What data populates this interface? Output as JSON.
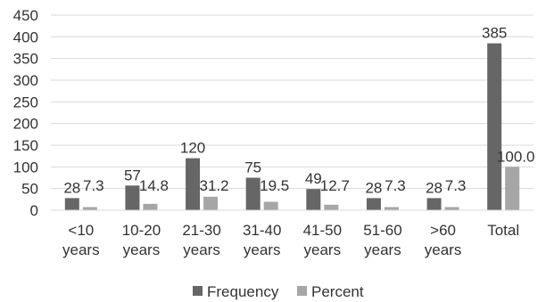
{
  "chart_data": {
    "type": "bar",
    "categories": [
      [
        "<10",
        "years"
      ],
      [
        "10-20",
        "years"
      ],
      [
        "21-30",
        "years"
      ],
      [
        "31-40",
        "years"
      ],
      [
        "41-50",
        "years"
      ],
      [
        "51-60",
        "years"
      ],
      [
        ">60",
        "years"
      ],
      [
        "Total"
      ]
    ],
    "series": [
      {
        "name": "Frequency",
        "color": "#666666",
        "values": [
          28,
          57,
          120,
          75,
          49,
          28,
          28,
          385
        ],
        "labels": [
          "28",
          "57",
          "120",
          "75",
          "49",
          "28",
          "28",
          "385"
        ]
      },
      {
        "name": "Percent",
        "color": "#a6a6a6",
        "values": [
          7.3,
          14.8,
          31.2,
          19.5,
          12.7,
          7.3,
          7.3,
          100.0
        ],
        "labels": [
          "7.3",
          "14.8",
          "31.2",
          "19.5",
          "12.7",
          "7.3",
          "7.3",
          "100.0"
        ]
      }
    ],
    "yticks": [
      "0",
      "50",
      "100",
      "150",
      "200",
      "250",
      "300",
      "350",
      "400",
      "450"
    ],
    "ylim": [
      0,
      450
    ],
    "grid": true,
    "legend": "bottom"
  }
}
